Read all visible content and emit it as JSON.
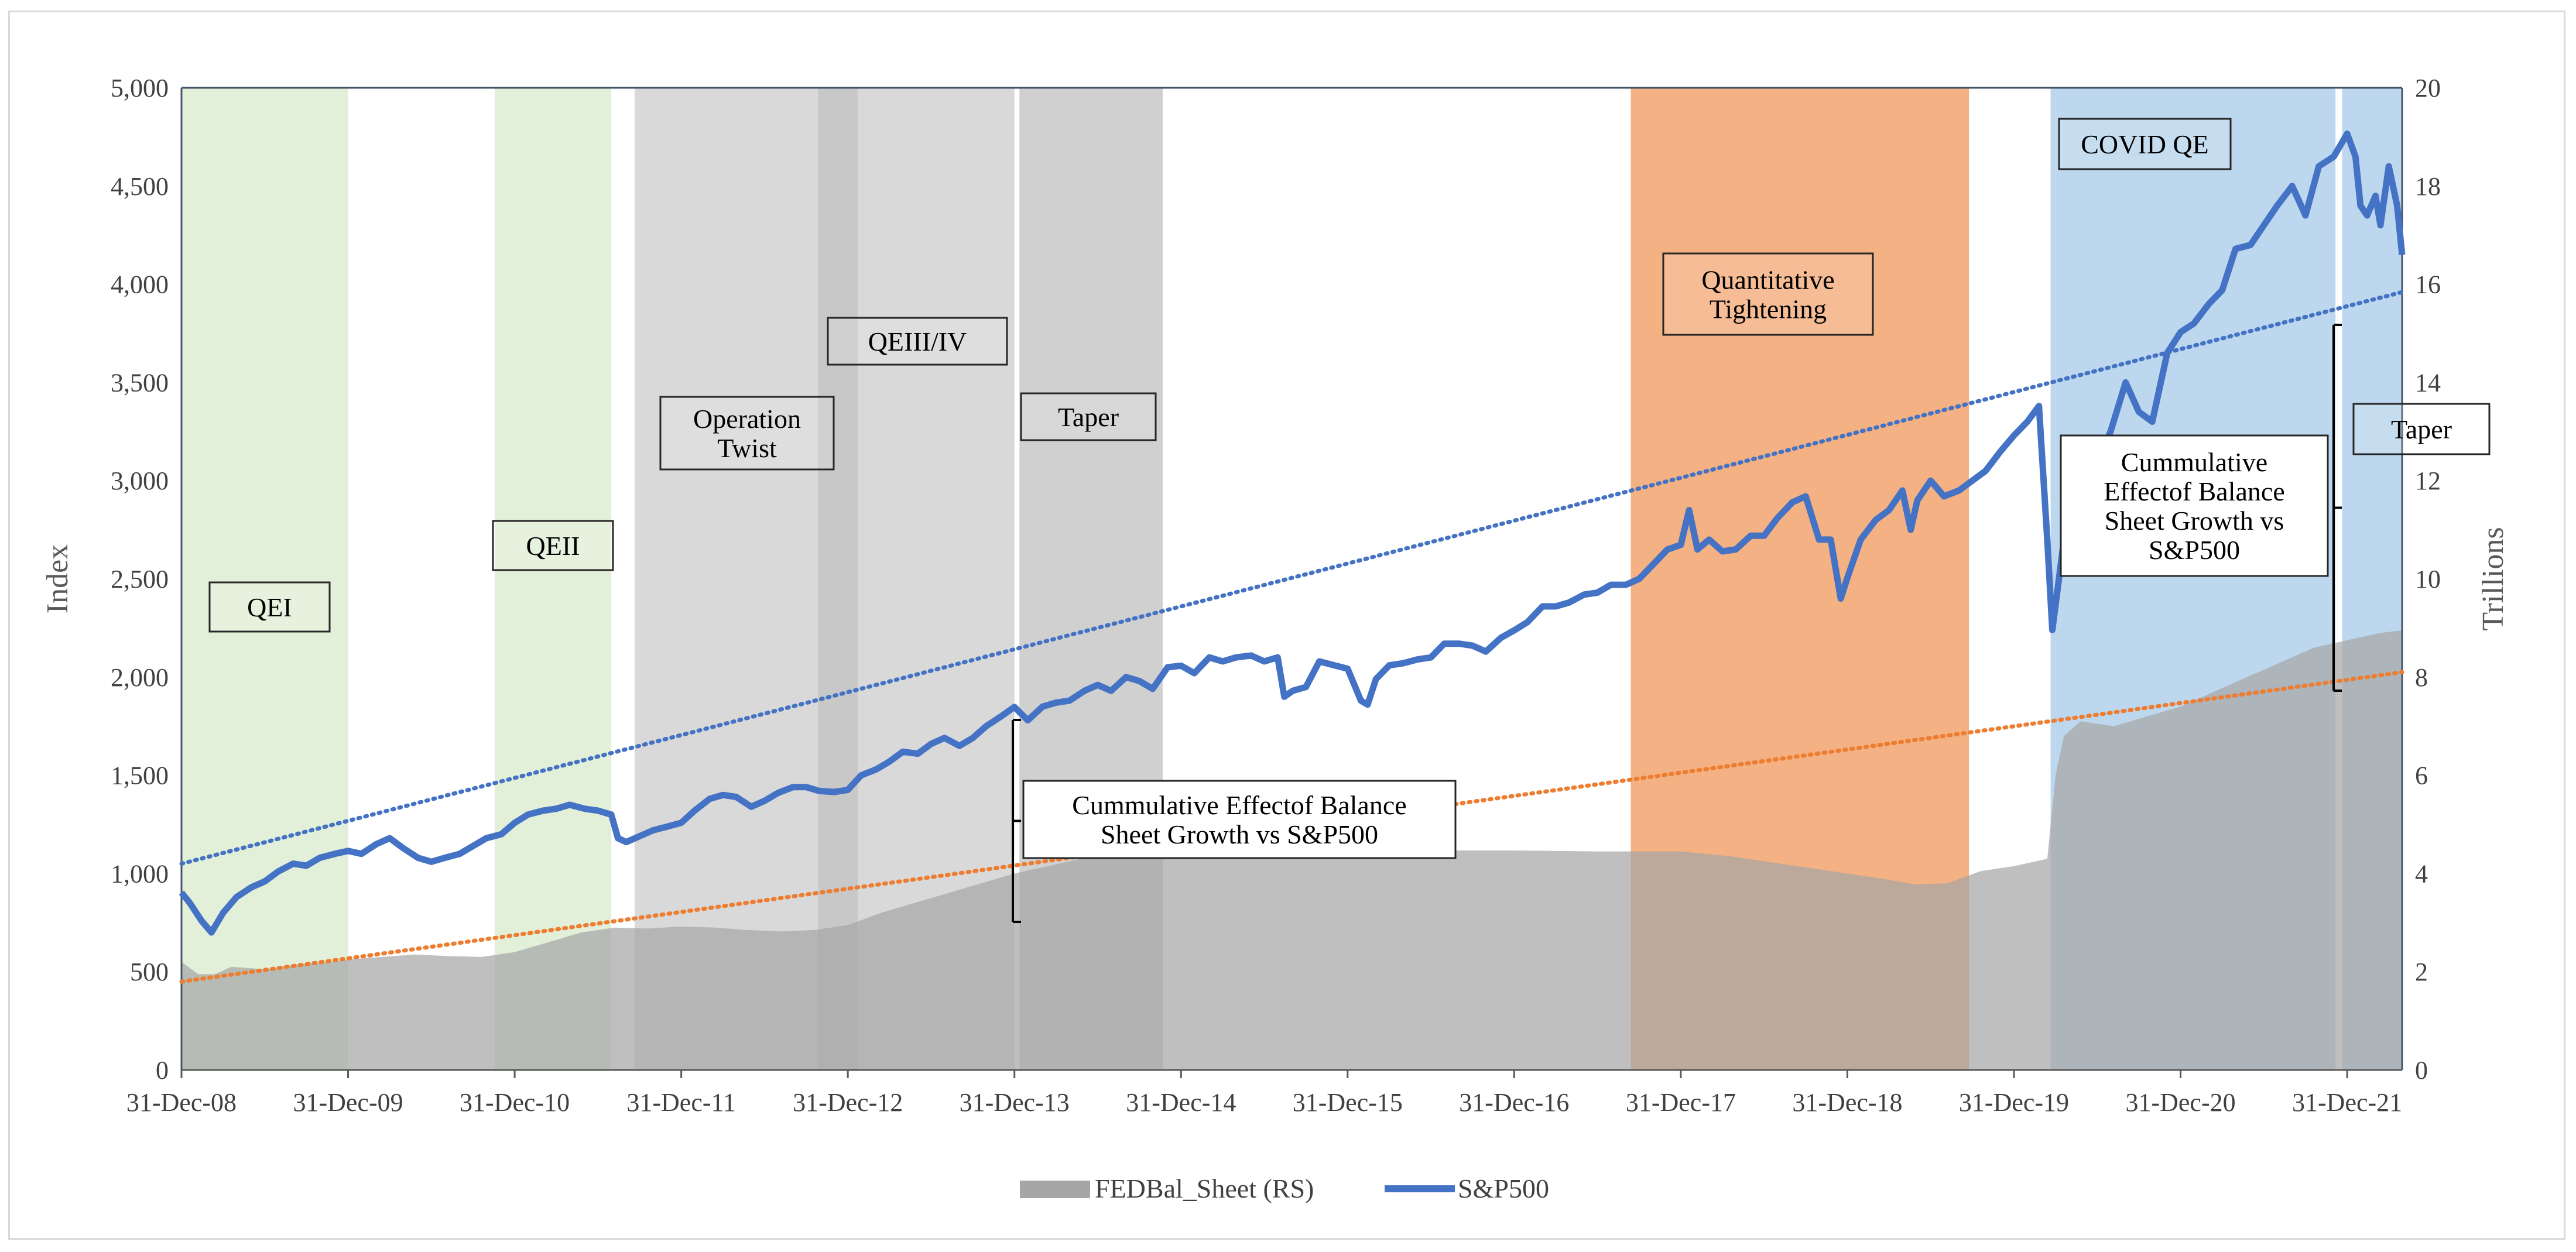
{
  "chart_data": {
    "type": "area+line",
    "title": "",
    "xlabel": "",
    "ylabel": "Index",
    "y2label": "Trillions",
    "ylim": [
      0,
      5000
    ],
    "y2lim": [
      0,
      20
    ],
    "xlim": [
      2009.0,
      2022.33
    ],
    "x_ticks": [
      {
        "label": "31-Dec-08",
        "t": 2009.0
      },
      {
        "label": "31-Dec-09",
        "t": 2010.0
      },
      {
        "label": "31-Dec-10",
        "t": 2011.0
      },
      {
        "label": "31-Dec-11",
        "t": 2012.0
      },
      {
        "label": "31-Dec-12",
        "t": 2013.0
      },
      {
        "label": "31-Dec-13",
        "t": 2014.0
      },
      {
        "label": "31-Dec-14",
        "t": 2015.0
      },
      {
        "label": "31-Dec-15",
        "t": 2016.0
      },
      {
        "label": "31-Dec-16",
        "t": 2017.0
      },
      {
        "label": "31-Dec-17",
        "t": 2018.0
      },
      {
        "label": "31-Dec-18",
        "t": 2019.0
      },
      {
        "label": "31-Dec-19",
        "t": 2020.0
      },
      {
        "label": "31-Dec-20",
        "t": 2021.0
      },
      {
        "label": "31-Dec-21",
        "t": 2022.0
      }
    ],
    "y_ticks": [
      "0",
      "500",
      "1,000",
      "1,500",
      "2,000",
      "2,500",
      "3,000",
      "3,500",
      "4,000",
      "4,500",
      "5,000"
    ],
    "y2_ticks": [
      "0",
      "2",
      "4",
      "6",
      "8",
      "10",
      "12",
      "14",
      "16",
      "18",
      "20"
    ],
    "legend": {
      "position": "bottom",
      "entries": [
        "FEDBal_Sheet (RS)",
        "S&P500"
      ]
    },
    "colors": {
      "sp500": "#4472c4",
      "fed_area": "#a6a6a6",
      "fed_trend": "#ed7d31",
      "sp_trend": "#4472c4"
    },
    "series": [
      {
        "name": "S&P500",
        "axis": "left",
        "points": [
          [
            2009.0,
            903
          ],
          [
            2009.05,
            850
          ],
          [
            2009.12,
            760
          ],
          [
            2009.18,
            700
          ],
          [
            2009.25,
            800
          ],
          [
            2009.33,
            880
          ],
          [
            2009.42,
            930
          ],
          [
            2009.5,
            960
          ],
          [
            2009.58,
            1010
          ],
          [
            2009.67,
            1050
          ],
          [
            2009.75,
            1040
          ],
          [
            2009.83,
            1080
          ],
          [
            2009.92,
            1100
          ],
          [
            2010.0,
            1115
          ],
          [
            2010.08,
            1100
          ],
          [
            2010.17,
            1150
          ],
          [
            2010.25,
            1180
          ],
          [
            2010.33,
            1130
          ],
          [
            2010.42,
            1080
          ],
          [
            2010.5,
            1060
          ],
          [
            2010.58,
            1080
          ],
          [
            2010.67,
            1100
          ],
          [
            2010.75,
            1140
          ],
          [
            2010.83,
            1180
          ],
          [
            2010.92,
            1200
          ],
          [
            2011.0,
            1258
          ],
          [
            2011.08,
            1300
          ],
          [
            2011.17,
            1320
          ],
          [
            2011.25,
            1330
          ],
          [
            2011.33,
            1350
          ],
          [
            2011.42,
            1330
          ],
          [
            2011.5,
            1320
          ],
          [
            2011.58,
            1300
          ],
          [
            2011.62,
            1180
          ],
          [
            2011.67,
            1160
          ],
          [
            2011.75,
            1190
          ],
          [
            2011.83,
            1220
          ],
          [
            2011.92,
            1240
          ],
          [
            2012.0,
            1258
          ],
          [
            2012.08,
            1320
          ],
          [
            2012.17,
            1380
          ],
          [
            2012.25,
            1400
          ],
          [
            2012.33,
            1390
          ],
          [
            2012.42,
            1340
          ],
          [
            2012.5,
            1370
          ],
          [
            2012.58,
            1410
          ],
          [
            2012.67,
            1440
          ],
          [
            2012.75,
            1440
          ],
          [
            2012.83,
            1420
          ],
          [
            2012.92,
            1415
          ],
          [
            2013.0,
            1426
          ],
          [
            2013.08,
            1500
          ],
          [
            2013.17,
            1530
          ],
          [
            2013.25,
            1570
          ],
          [
            2013.33,
            1620
          ],
          [
            2013.42,
            1610
          ],
          [
            2013.5,
            1660
          ],
          [
            2013.58,
            1690
          ],
          [
            2013.67,
            1650
          ],
          [
            2013.75,
            1690
          ],
          [
            2013.83,
            1750
          ],
          [
            2013.92,
            1800
          ],
          [
            2014.0,
            1848
          ],
          [
            2014.08,
            1780
          ],
          [
            2014.17,
            1850
          ],
          [
            2014.25,
            1870
          ],
          [
            2014.33,
            1880
          ],
          [
            2014.42,
            1930
          ],
          [
            2014.5,
            1960
          ],
          [
            2014.58,
            1930
          ],
          [
            2014.67,
            2000
          ],
          [
            2014.75,
            1980
          ],
          [
            2014.83,
            1940
          ],
          [
            2014.92,
            2050
          ],
          [
            2015.0,
            2058
          ],
          [
            2015.08,
            2020
          ],
          [
            2015.17,
            2100
          ],
          [
            2015.25,
            2080
          ],
          [
            2015.33,
            2100
          ],
          [
            2015.42,
            2110
          ],
          [
            2015.5,
            2080
          ],
          [
            2015.58,
            2100
          ],
          [
            2015.62,
            1900
          ],
          [
            2015.67,
            1930
          ],
          [
            2015.75,
            1950
          ],
          [
            2015.83,
            2080
          ],
          [
            2015.92,
            2060
          ],
          [
            2016.0,
            2043
          ],
          [
            2016.08,
            1880
          ],
          [
            2016.12,
            1860
          ],
          [
            2016.17,
            1990
          ],
          [
            2016.25,
            2060
          ],
          [
            2016.33,
            2070
          ],
          [
            2016.42,
            2090
          ],
          [
            2016.5,
            2100
          ],
          [
            2016.58,
            2170
          ],
          [
            2016.67,
            2170
          ],
          [
            2016.75,
            2160
          ],
          [
            2016.83,
            2130
          ],
          [
            2016.92,
            2200
          ],
          [
            2017.0,
            2238
          ],
          [
            2017.08,
            2280
          ],
          [
            2017.17,
            2360
          ],
          [
            2017.25,
            2360
          ],
          [
            2017.33,
            2380
          ],
          [
            2017.42,
            2420
          ],
          [
            2017.5,
            2430
          ],
          [
            2017.58,
            2470
          ],
          [
            2017.67,
            2470
          ],
          [
            2017.75,
            2500
          ],
          [
            2017.83,
            2570
          ],
          [
            2017.92,
            2650
          ],
          [
            2018.0,
            2673
          ],
          [
            2018.05,
            2850
          ],
          [
            2018.1,
            2650
          ],
          [
            2018.17,
            2700
          ],
          [
            2018.25,
            2640
          ],
          [
            2018.33,
            2650
          ],
          [
            2018.42,
            2720
          ],
          [
            2018.5,
            2720
          ],
          [
            2018.58,
            2810
          ],
          [
            2018.67,
            2890
          ],
          [
            2018.75,
            2920
          ],
          [
            2018.83,
            2700
          ],
          [
            2018.9,
            2700
          ],
          [
            2018.96,
            2400
          ],
          [
            2019.0,
            2506
          ],
          [
            2019.08,
            2700
          ],
          [
            2019.17,
            2800
          ],
          [
            2019.25,
            2850
          ],
          [
            2019.33,
            2950
          ],
          [
            2019.38,
            2750
          ],
          [
            2019.42,
            2900
          ],
          [
            2019.5,
            3000
          ],
          [
            2019.58,
            2920
          ],
          [
            2019.67,
            2950
          ],
          [
            2019.75,
            3000
          ],
          [
            2019.83,
            3050
          ],
          [
            2019.92,
            3150
          ],
          [
            2020.0,
            3230
          ],
          [
            2020.08,
            3300
          ],
          [
            2020.15,
            3380
          ],
          [
            2020.2,
            2700
          ],
          [
            2020.23,
            2240
          ],
          [
            2020.27,
            2500
          ],
          [
            2020.33,
            2900
          ],
          [
            2020.42,
            3050
          ],
          [
            2020.5,
            3100
          ],
          [
            2020.58,
            3250
          ],
          [
            2020.67,
            3500
          ],
          [
            2020.75,
            3350
          ],
          [
            2020.83,
            3300
          ],
          [
            2020.92,
            3650
          ],
          [
            2021.0,
            3756
          ],
          [
            2021.08,
            3800
          ],
          [
            2021.17,
            3900
          ],
          [
            2021.25,
            3970
          ],
          [
            2021.33,
            4180
          ],
          [
            2021.42,
            4200
          ],
          [
            2021.5,
            4300
          ],
          [
            2021.58,
            4400
          ],
          [
            2021.67,
            4500
          ],
          [
            2021.75,
            4350
          ],
          [
            2021.83,
            4600
          ],
          [
            2021.92,
            4650
          ],
          [
            2022.0,
            4766
          ],
          [
            2022.05,
            4650
          ],
          [
            2022.08,
            4400
          ],
          [
            2022.12,
            4350
          ],
          [
            2022.17,
            4450
          ],
          [
            2022.2,
            4300
          ],
          [
            2022.25,
            4600
          ],
          [
            2022.3,
            4400
          ],
          [
            2022.33,
            4150
          ]
        ]
      },
      {
        "name": "FEDBal_Sheet (RS)",
        "axis": "right",
        "unit": "Trillions",
        "points": [
          [
            2009.0,
            2.2
          ],
          [
            2009.1,
            1.95
          ],
          [
            2009.2,
            1.95
          ],
          [
            2009.3,
            2.1
          ],
          [
            2009.5,
            2.05
          ],
          [
            2009.7,
            2.15
          ],
          [
            2009.9,
            2.2
          ],
          [
            2010.0,
            2.25
          ],
          [
            2010.2,
            2.3
          ],
          [
            2010.4,
            2.35
          ],
          [
            2010.6,
            2.32
          ],
          [
            2010.8,
            2.3
          ],
          [
            2011.0,
            2.4
          ],
          [
            2011.2,
            2.6
          ],
          [
            2011.4,
            2.8
          ],
          [
            2011.6,
            2.9
          ],
          [
            2011.8,
            2.88
          ],
          [
            2012.0,
            2.92
          ],
          [
            2012.2,
            2.9
          ],
          [
            2012.4,
            2.85
          ],
          [
            2012.6,
            2.82
          ],
          [
            2012.8,
            2.85
          ],
          [
            2013.0,
            2.95
          ],
          [
            2013.2,
            3.2
          ],
          [
            2013.4,
            3.4
          ],
          [
            2013.6,
            3.6
          ],
          [
            2013.8,
            3.8
          ],
          [
            2014.0,
            4.0
          ],
          [
            2014.2,
            4.15
          ],
          [
            2014.4,
            4.3
          ],
          [
            2014.6,
            4.4
          ],
          [
            2014.8,
            4.45
          ],
          [
            2015.0,
            4.5
          ],
          [
            2015.5,
            4.5
          ],
          [
            2016.0,
            4.48
          ],
          [
            2016.5,
            4.47
          ],
          [
            2017.0,
            4.47
          ],
          [
            2017.5,
            4.45
          ],
          [
            2018.0,
            4.45
          ],
          [
            2018.3,
            4.35
          ],
          [
            2018.6,
            4.2
          ],
          [
            2018.9,
            4.05
          ],
          [
            2019.2,
            3.9
          ],
          [
            2019.4,
            3.78
          ],
          [
            2019.6,
            3.8
          ],
          [
            2019.8,
            4.05
          ],
          [
            2020.0,
            4.15
          ],
          [
            2020.2,
            4.3
          ],
          [
            2020.25,
            6.0
          ],
          [
            2020.3,
            6.8
          ],
          [
            2020.4,
            7.1
          ],
          [
            2020.6,
            7.0
          ],
          [
            2020.8,
            7.2
          ],
          [
            2021.0,
            7.4
          ],
          [
            2021.2,
            7.7
          ],
          [
            2021.4,
            8.0
          ],
          [
            2021.6,
            8.3
          ],
          [
            2021.8,
            8.6
          ],
          [
            2022.0,
            8.75
          ],
          [
            2022.2,
            8.9
          ],
          [
            2022.33,
            8.95
          ]
        ]
      }
    ],
    "trendlines": [
      {
        "name": "S&P500 trend",
        "axis": "left",
        "from": [
          2009.0,
          1050
        ],
        "to": [
          2022.33,
          3960
        ]
      },
      {
        "name": "FEDBal_Sheet trend",
        "axis": "right",
        "from": [
          2009.0,
          1.8
        ],
        "to": [
          2022.33,
          8.1
        ]
      }
    ],
    "shaded_periods": [
      {
        "name": "QEI",
        "from": 2009.0,
        "to": 2010.0,
        "color": "#e2efd9"
      },
      {
        "name": "QEII",
        "from": 2010.88,
        "to": 2011.58,
        "color": "#e2efd9"
      },
      {
        "name": "Operation Twist",
        "from": 2011.72,
        "to": 2012.82,
        "color": "#d9d9d9"
      },
      {
        "name": "QEIII/IV",
        "from": 2013.06,
        "to": 2014.0,
        "color": "#d9d9d9"
      },
      {
        "name": "QEIII/IV overlap",
        "from": 2012.82,
        "to": 2013.06,
        "color": "#c8c8c8"
      },
      {
        "name": "Taper",
        "from": 2014.03,
        "to": 2014.89,
        "color": "#d0d0d0"
      },
      {
        "name": "Quantitative Tightening",
        "from": 2017.7,
        "to": 2019.73,
        "color": "#f4b183"
      },
      {
        "name": "COVID QE",
        "from": 2020.22,
        "to": 2021.93,
        "color": "#bdd7ee"
      },
      {
        "name": "Taper",
        "from": 2021.97,
        "to": 2022.33,
        "color": "#bdd7ee"
      }
    ],
    "annotations": [
      {
        "id": "qei",
        "lines": [
          "QEI"
        ]
      },
      {
        "id": "qeii",
        "lines": [
          "QEII"
        ]
      },
      {
        "id": "twist",
        "lines": [
          "Operation",
          "Twist"
        ]
      },
      {
        "id": "qeiii",
        "lines": [
          "QEIII/IV"
        ]
      },
      {
        "id": "taper1",
        "lines": [
          "Taper"
        ]
      },
      {
        "id": "qt",
        "lines": [
          "Quantitative",
          "Tightening"
        ]
      },
      {
        "id": "covid",
        "lines": [
          "COVID QE"
        ]
      },
      {
        "id": "taper2",
        "lines": [
          "Taper"
        ]
      },
      {
        "id": "cum1",
        "lines": [
          "Cummulative Effectof Balance",
          "Sheet Growth vs S&P500"
        ]
      },
      {
        "id": "cum2",
        "lines": [
          "Cummulative",
          "Effectof Balance",
          "Sheet Growth vs",
          "S&P500"
        ]
      }
    ]
  }
}
